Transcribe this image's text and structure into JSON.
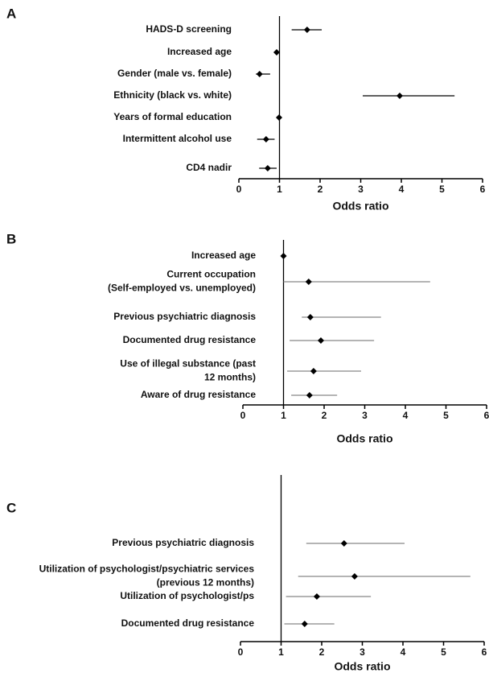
{
  "chart_data": [
    {
      "type": "forest",
      "panel": "A",
      "categories": [
        "HADS-D screening",
        "Increased age",
        "Gender (male vs. female)",
        "Ethnicity (black vs. white)",
        "Years of formal education",
        "Intermittent alcohol use",
        "CD4 nadir"
      ],
      "values": [
        1.68,
        0.93,
        0.51,
        3.96,
        0.99,
        0.67,
        0.71
      ],
      "ci_low": [
        1.3,
        0.9,
        0.42,
        3.05,
        0.97,
        0.45,
        0.5
      ],
      "ci_high": [
        2.04,
        0.97,
        0.77,
        5.31,
        1.01,
        0.88,
        0.93
      ],
      "xlabel": "Odds ratio",
      "xlim": [
        0,
        6
      ],
      "xticks": [
        0,
        1,
        2,
        3,
        4,
        5,
        6
      ],
      "reference_line": 1,
      "color": "#000000",
      "ci_color": "#000000"
    },
    {
      "type": "forest",
      "panel": "B",
      "categories": [
        "Increased age",
        "Current occupation\n(Self-employed vs. unemployed)",
        "Previous psychiatric diagnosis",
        "Documented drug resistance",
        "Use of illegal substance (past\n12 months)",
        "Aware of drug resistance"
      ],
      "values": [
        1.0,
        1.62,
        1.66,
        1.92,
        1.74,
        1.64
      ],
      "ci_low": [
        0.98,
        1.0,
        1.45,
        1.15,
        1.09,
        1.19
      ],
      "ci_high": [
        1.02,
        4.61,
        3.4,
        3.23,
        2.91,
        2.32
      ],
      "xlabel": "Odds ratio",
      "xlim": [
        0,
        6
      ],
      "xticks": [
        0,
        1,
        2,
        3,
        4,
        5,
        6
      ],
      "reference_line": 1,
      "color": "#000000",
      "ci_color": "#888888"
    },
    {
      "type": "forest",
      "panel": "C",
      "categories": [
        "Previous psychiatric diagnosis",
        "Utilization of psychologist/psychiatric services\n(previous 12 months)",
        "Utilization of psychologist/ps",
        "Documented drug resistance"
      ],
      "values": [
        2.55,
        2.81,
        1.88,
        1.58
      ],
      "ci_low": [
        1.62,
        1.42,
        1.12,
        1.08
      ],
      "ci_high": [
        4.04,
        5.66,
        3.21,
        2.31
      ],
      "xlabel": "Odds ratio",
      "xlim": [
        0,
        6
      ],
      "xticks": [
        0,
        1,
        2,
        3,
        4,
        5,
        6
      ],
      "reference_line": 1,
      "color": "#000000",
      "ci_color": "#888888"
    }
  ]
}
